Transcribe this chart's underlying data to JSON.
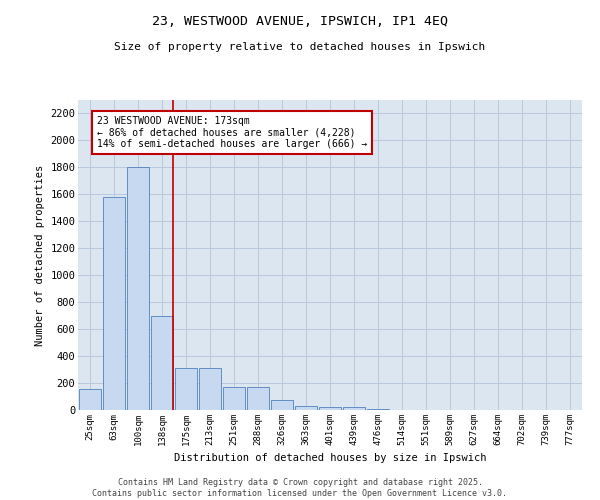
{
  "title_line1": "23, WESTWOOD AVENUE, IPSWICH, IP1 4EQ",
  "title_line2": "Size of property relative to detached houses in Ipswich",
  "xlabel": "Distribution of detached houses by size in Ipswich",
  "ylabel": "Number of detached properties",
  "categories": [
    "25sqm",
    "63sqm",
    "100sqm",
    "138sqm",
    "175sqm",
    "213sqm",
    "251sqm",
    "288sqm",
    "326sqm",
    "363sqm",
    "401sqm",
    "439sqm",
    "476sqm",
    "514sqm",
    "551sqm",
    "589sqm",
    "627sqm",
    "664sqm",
    "702sqm",
    "739sqm",
    "777sqm"
  ],
  "values": [
    155,
    1580,
    1800,
    700,
    310,
    310,
    170,
    170,
    75,
    30,
    20,
    20,
    10,
    0,
    0,
    0,
    0,
    0,
    0,
    0,
    0
  ],
  "bar_color": "#c6d9f0",
  "bar_edge_color": "#4f81bd",
  "vline_color": "#c00000",
  "annotation_text": "23 WESTWOOD AVENUE: 173sqm\n← 86% of detached houses are smaller (4,228)\n14% of semi-detached houses are larger (666) →",
  "annotation_box_color": "#ffffff",
  "annotation_box_edge_color": "#c00000",
  "ylim": [
    0,
    2300
  ],
  "yticks": [
    0,
    200,
    400,
    600,
    800,
    1000,
    1200,
    1400,
    1600,
    1800,
    2000,
    2200
  ],
  "grid_color": "#b8c8dc",
  "bg_color": "#dce6f1",
  "footer_line1": "Contains HM Land Registry data © Crown copyright and database right 2025.",
  "footer_line2": "Contains public sector information licensed under the Open Government Licence v3.0."
}
